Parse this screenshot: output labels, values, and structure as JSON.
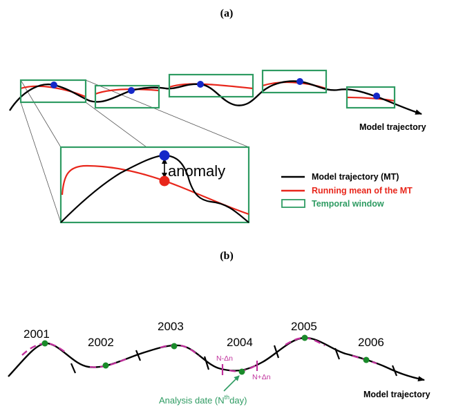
{
  "panel_a": {
    "label": "(a)",
    "trajectory_label": "Model trajectory",
    "anomaly_label": "anomaly",
    "legend": [
      {
        "label": "Model trajectory (MT)",
        "color": "#000000"
      },
      {
        "label": "Running  mean  of the MT",
        "color": "#e8261b"
      },
      {
        "label": "Temporal window",
        "color": "#2e9b62"
      }
    ]
  },
  "panel_b": {
    "label": "(b)",
    "years": [
      "2001",
      "2002",
      "2003",
      "2004",
      "2005",
      "2006"
    ],
    "n_minus_label": "N-Δn",
    "n_plus_label": "N+Δn",
    "analysis_label": "Analysis  date (N",
    "analysis_sup": "th",
    "analysis_suffix": "day)",
    "trajectory_label": "Model trajectory"
  },
  "colors": {
    "trajectory": "#000000",
    "running_mean": "#e8261b",
    "window": "#2e9b62",
    "point": "#1528c8",
    "anomaly_point": "#e8261b",
    "interval": "#c0309c",
    "day_point": "#1a8a2a"
  }
}
